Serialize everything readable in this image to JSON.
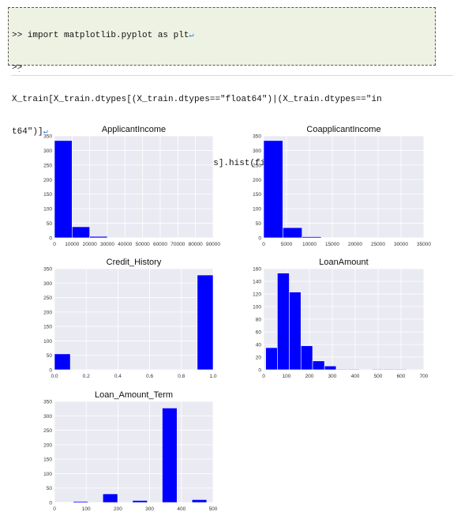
{
  "code": {
    "lines": [
      ">> import matplotlib.pyplot as plt",
      ">>",
      "X_train[X_train.dtypes[(X_train.dtypes==\"float64\")|(X_train.dtypes==\"in",
      "t64\")]",
      ".index.values].hist(figsize=[11,11])"
    ],
    "line_marks": [
      "↵",
      "",
      "",
      "↵",
      "-"
    ]
  },
  "colors": {
    "bar": "#0000ff",
    "plot_bg": "#eaeaf2",
    "grid": "#ffffff"
  },
  "chart_data": [
    {
      "type": "bar",
      "title": "ApplicantIncome",
      "bins": [
        [
          0,
          10000,
          334
        ],
        [
          10000,
          20000,
          38
        ],
        [
          20000,
          30000,
          5
        ],
        [
          70000,
          80000,
          1
        ]
      ],
      "xlim": [
        0,
        90000
      ],
      "ylim": [
        0,
        350
      ],
      "xticks": [
        0,
        10000,
        20000,
        30000,
        40000,
        50000,
        60000,
        70000,
        80000,
        90000
      ],
      "yticks": [
        0,
        50,
        100,
        150,
        200,
        250,
        300,
        350
      ],
      "grid": true
    },
    {
      "type": "bar",
      "title": "CoapplicantIncome",
      "bins": [
        [
          0,
          4200,
          334
        ],
        [
          4200,
          8400,
          35
        ],
        [
          8400,
          12600,
          4
        ],
        [
          12600,
          16800,
          1
        ],
        [
          16800,
          21000,
          1
        ]
      ],
      "xlim": [
        0,
        35000
      ],
      "ylim": [
        0,
        350
      ],
      "xticks": [
        0,
        5000,
        10000,
        15000,
        20000,
        25000,
        30000,
        35000
      ],
      "yticks": [
        0,
        50,
        100,
        150,
        200,
        250,
        300,
        350
      ],
      "grid": true
    },
    {
      "type": "bar",
      "title": "Credit_History",
      "bins": [
        [
          0,
          0.1,
          55
        ],
        [
          0.9,
          1.0,
          328
        ]
      ],
      "xlim": [
        0,
        1.0
      ],
      "ylim": [
        0,
        350
      ],
      "xticks": [
        0.0,
        0.2,
        0.4,
        0.6,
        0.8,
        1.0
      ],
      "yticks": [
        0,
        50,
        100,
        150,
        200,
        250,
        300,
        350
      ],
      "grid": true
    },
    {
      "type": "bar",
      "title": "LoanAmount",
      "bins": [
        [
          9,
          60,
          35
        ],
        [
          60,
          112,
          153
        ],
        [
          112,
          163,
          123
        ],
        [
          163,
          214,
          38
        ],
        [
          214,
          266,
          14
        ],
        [
          266,
          317,
          6
        ],
        [
          317,
          368,
          1
        ],
        [
          368,
          420,
          1
        ],
        [
          420,
          471,
          0
        ],
        [
          471,
          522,
          1
        ],
        [
          522,
          573,
          1
        ],
        [
          573,
          624,
          1
        ]
      ],
      "xlim": [
        0,
        700
      ],
      "ylim": [
        0,
        160
      ],
      "xticks": [
        0,
        100,
        200,
        300,
        400,
        500,
        600,
        700
      ],
      "yticks": [
        0,
        20,
        40,
        60,
        80,
        100,
        120,
        140,
        160
      ],
      "grid": true
    },
    {
      "type": "bar",
      "title": "Loan_Amount_Term",
      "bins": [
        [
          12,
          58.8,
          1
        ],
        [
          58.8,
          105.6,
          4
        ],
        [
          105.6,
          152.4,
          0
        ],
        [
          152.4,
          199.2,
          30
        ],
        [
          199.2,
          246,
          0
        ],
        [
          246,
          292.8,
          7
        ],
        [
          292.8,
          339.6,
          0
        ],
        [
          339.6,
          386.4,
          327
        ],
        [
          386.4,
          433.2,
          0
        ],
        [
          433.2,
          480,
          10
        ]
      ],
      "xlim": [
        0,
        500
      ],
      "ylim": [
        0,
        350
      ],
      "xticks": [
        0,
        100,
        200,
        300,
        400,
        500
      ],
      "yticks": [
        0,
        50,
        100,
        150,
        200,
        250,
        300,
        350
      ],
      "grid": true
    }
  ]
}
